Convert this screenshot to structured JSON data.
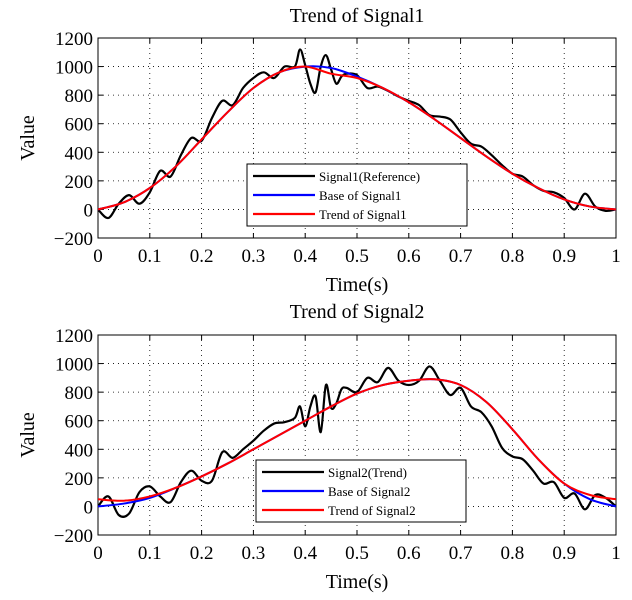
{
  "chart_data": [
    {
      "type": "line",
      "title": "Trend of Signal1",
      "xlabel": "Time(s)",
      "ylabel": "Value",
      "xlim": [
        0,
        1
      ],
      "ylim": [
        -200,
        1200
      ],
      "xticks": [
        "0",
        "0.1",
        "0.2",
        "0.3",
        "0.4",
        "0.5",
        "0.6",
        "0.7",
        "0.8",
        "0.9",
        "1"
      ],
      "yticks": [
        "−200",
        "0",
        "200",
        "400",
        "600",
        "800",
        "1000",
        "1200"
      ],
      "grid": "dotted",
      "legend_position": "bottom-right",
      "series": [
        {
          "name": "Signal1(Reference)",
          "color": "#000000",
          "x": [
            0,
            0.02,
            0.04,
            0.06,
            0.08,
            0.1,
            0.12,
            0.14,
            0.16,
            0.18,
            0.2,
            0.22,
            0.24,
            0.26,
            0.28,
            0.3,
            0.32,
            0.34,
            0.36,
            0.38,
            0.39,
            0.4,
            0.41,
            0.42,
            0.43,
            0.44,
            0.45,
            0.46,
            0.47,
            0.48,
            0.5,
            0.52,
            0.54,
            0.56,
            0.58,
            0.6,
            0.62,
            0.64,
            0.66,
            0.68,
            0.7,
            0.72,
            0.74,
            0.76,
            0.78,
            0.8,
            0.82,
            0.84,
            0.86,
            0.88,
            0.9,
            0.92,
            0.94,
            0.96,
            0.98,
            1
          ],
          "values": [
            0,
            -60,
            40,
            100,
            40,
            120,
            270,
            230,
            380,
            500,
            480,
            640,
            760,
            730,
            850,
            920,
            960,
            920,
            1000,
            1000,
            1120,
            1010,
            880,
            820,
            1000,
            1080,
            980,
            880,
            930,
            950,
            940,
            850,
            860,
            830,
            790,
            760,
            730,
            660,
            650,
            630,
            540,
            460,
            440,
            380,
            310,
            250,
            230,
            170,
            130,
            120,
            80,
            0,
            110,
            20,
            -10,
            0
          ]
        },
        {
          "name": "Base of Signal1",
          "color": "#0000ff",
          "x": [
            0,
            0.05,
            0.1,
            0.15,
            0.2,
            0.25,
            0.3,
            0.35,
            0.4,
            0.45,
            0.5,
            0.55,
            0.6,
            0.65,
            0.7,
            0.75,
            0.8,
            0.85,
            0.9,
            0.95,
            1
          ],
          "values": [
            0,
            50,
            150,
            300,
            490,
            680,
            850,
            960,
            1000,
            990,
            930,
            850,
            750,
            630,
            500,
            370,
            250,
            150,
            70,
            20,
            0
          ]
        },
        {
          "name": "Trend of Signal1",
          "color": "#ff0000",
          "x": [
            0,
            0.05,
            0.1,
            0.15,
            0.2,
            0.25,
            0.3,
            0.35,
            0.4,
            0.45,
            0.5,
            0.55,
            0.6,
            0.65,
            0.7,
            0.75,
            0.8,
            0.85,
            0.9,
            0.95,
            1
          ],
          "values": [
            0,
            50,
            150,
            300,
            490,
            680,
            850,
            960,
            1000,
            950,
            920,
            850,
            750,
            630,
            500,
            370,
            250,
            150,
            70,
            20,
            0
          ]
        }
      ]
    },
    {
      "type": "line",
      "title": "Trend of Signal2",
      "xlabel": "Time(s)",
      "ylabel": "Value",
      "xlim": [
        0,
        1
      ],
      "ylim": [
        -200,
        1200
      ],
      "xticks": [
        "0",
        "0.1",
        "0.2",
        "0.3",
        "0.4",
        "0.5",
        "0.6",
        "0.7",
        "0.8",
        "0.9",
        "1"
      ],
      "yticks": [
        "−200",
        "0",
        "200",
        "400",
        "600",
        "800",
        "1000",
        "1200"
      ],
      "grid": "dotted",
      "legend_position": "bottom-right",
      "series": [
        {
          "name": "Signal2(Trend)",
          "color": "#000000",
          "x": [
            0,
            0.02,
            0.04,
            0.06,
            0.08,
            0.1,
            0.12,
            0.14,
            0.16,
            0.18,
            0.2,
            0.22,
            0.24,
            0.26,
            0.28,
            0.3,
            0.32,
            0.34,
            0.36,
            0.38,
            0.39,
            0.4,
            0.41,
            0.42,
            0.43,
            0.44,
            0.45,
            0.46,
            0.47,
            0.48,
            0.5,
            0.52,
            0.54,
            0.56,
            0.58,
            0.6,
            0.62,
            0.64,
            0.66,
            0.68,
            0.7,
            0.72,
            0.74,
            0.76,
            0.78,
            0.8,
            0.82,
            0.84,
            0.86,
            0.88,
            0.9,
            0.92,
            0.94,
            0.96,
            0.98,
            1
          ],
          "values": [
            0,
            70,
            -60,
            -50,
            100,
            140,
            70,
            30,
            170,
            250,
            180,
            180,
            380,
            340,
            400,
            460,
            530,
            580,
            590,
            620,
            700,
            560,
            700,
            770,
            520,
            850,
            690,
            720,
            820,
            830,
            800,
            900,
            870,
            970,
            880,
            850,
            880,
            980,
            880,
            780,
            830,
            700,
            660,
            560,
            410,
            350,
            330,
            250,
            160,
            170,
            60,
            90,
            -20,
            80,
            60,
            0
          ]
        },
        {
          "name": "Base of Signal2",
          "color": "#0000ff",
          "x": [
            0,
            0.05,
            0.1,
            0.15,
            0.2,
            0.25,
            0.3,
            0.35,
            0.4,
            0.45,
            0.5,
            0.55,
            0.6,
            0.65,
            0.7,
            0.75,
            0.8,
            0.85,
            0.9,
            0.95,
            1
          ],
          "values": [
            0,
            20,
            60,
            130,
            210,
            300,
            400,
            500,
            600,
            700,
            790,
            850,
            880,
            890,
            850,
            730,
            540,
            330,
            160,
            50,
            0
          ]
        },
        {
          "name": "Trend of Signal2",
          "color": "#ff0000",
          "x": [
            0,
            0.05,
            0.1,
            0.15,
            0.2,
            0.25,
            0.3,
            0.35,
            0.4,
            0.45,
            0.5,
            0.55,
            0.6,
            0.65,
            0.7,
            0.75,
            0.8,
            0.85,
            0.9,
            0.95,
            1
          ],
          "values": [
            50,
            40,
            70,
            130,
            210,
            300,
            400,
            500,
            600,
            700,
            790,
            850,
            880,
            890,
            850,
            730,
            540,
            330,
            160,
            80,
            50
          ]
        }
      ]
    }
  ]
}
